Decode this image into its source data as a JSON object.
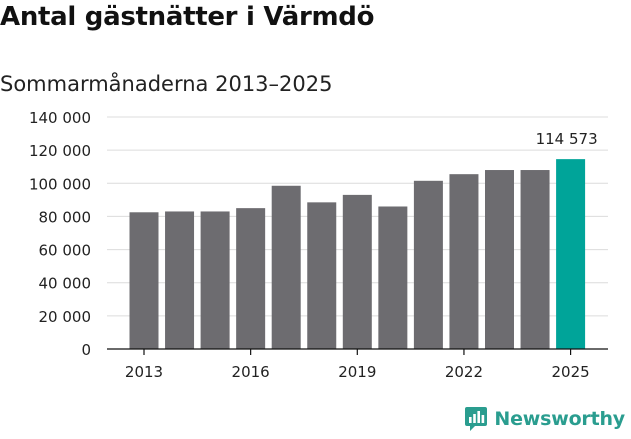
{
  "title": "Antal gästnätter i Värmdö",
  "subtitle": "Sommarmånaderna 2013–2025",
  "logo_text": "Newsworthy",
  "colors": {
    "bar": "#6d6c70",
    "highlight": "#00a499",
    "grid": "#dcdcdc",
    "axis": "#111111",
    "brand": "#2a9d8f"
  },
  "chart_data": {
    "type": "bar",
    "categories": [
      "2013",
      "2014",
      "2015",
      "2016",
      "2017",
      "2018",
      "2019",
      "2020",
      "2021",
      "2022",
      "2023",
      "2024",
      "2025"
    ],
    "values": [
      82500,
      83000,
      83000,
      85000,
      98500,
      88500,
      93000,
      86000,
      101500,
      105500,
      108000,
      108000,
      114573
    ],
    "highlight_index": 12,
    "data_labels": [
      {
        "index": 12,
        "text": "114 573"
      }
    ],
    "x_tick_labels": [
      "2013",
      "2016",
      "2019",
      "2022",
      "2025"
    ],
    "y_ticks": [
      0,
      20000,
      40000,
      60000,
      80000,
      100000,
      120000,
      140000
    ],
    "y_tick_labels": [
      "0",
      "20 000",
      "40 000",
      "60 000",
      "80 000",
      "100 000",
      "120 000",
      "140 000"
    ],
    "ylim": [
      0,
      140000
    ],
    "xlabel": "",
    "ylabel": "",
    "grid": true
  }
}
